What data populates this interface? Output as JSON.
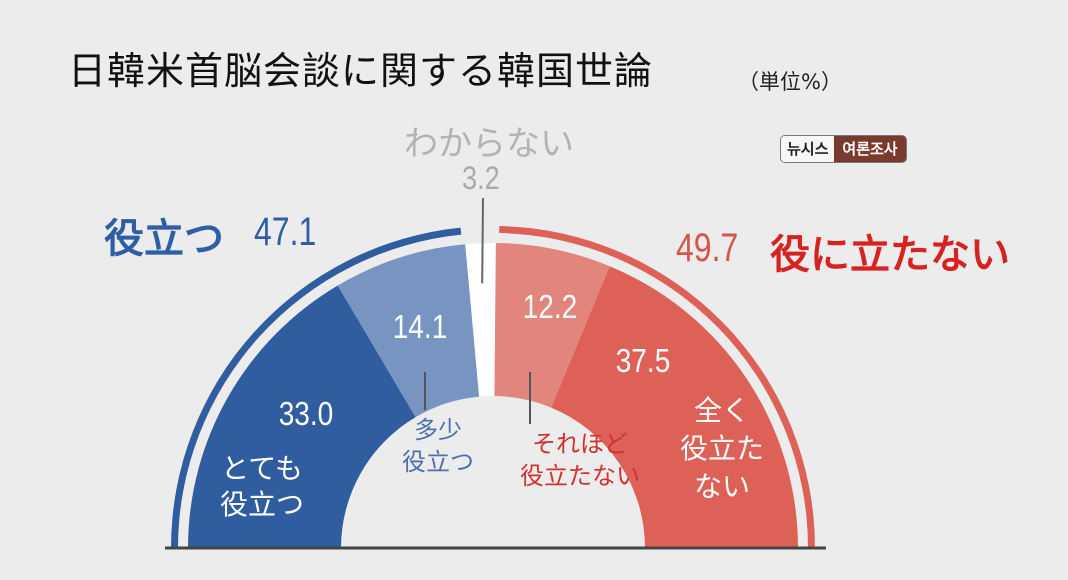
{
  "title": "日韓米首脳会談に関する韓国世論",
  "unit": "（単位%）",
  "source_badge": {
    "left": "뉴시스",
    "right": "여론조사"
  },
  "groups": {
    "positive": {
      "label": "役立つ",
      "value": "47.1"
    },
    "negative": {
      "label": "役に立たない",
      "value": "49.7"
    },
    "unknown": {
      "label": "わからない",
      "value": "3.2"
    }
  },
  "colors": {
    "very_useful": "#2f5d9f",
    "somewhat_useful": "#7895c2",
    "unknown": "#ffffff",
    "not_very_useful": "#e1857d",
    "not_at_all_useful": "#dd6157",
    "positive_text": "#2e5ea6",
    "negative_text": "#d6231f"
  },
  "chart_data": {
    "type": "pie",
    "shape": "half-donut",
    "title": "日韓米首脳会談に関する韓国世論",
    "unit": "（単位%）",
    "slices": [
      {
        "label": "とても役立つ",
        "value": 33.0,
        "color": "#2f5d9f"
      },
      {
        "label": "多少役立つ",
        "value": 14.1,
        "color": "#7895c2"
      },
      {
        "label": "",
        "value": 3.2,
        "color": "#ffffff"
      },
      {
        "label": "それほど役立たない",
        "value": 12.2,
        "color": "#e1857d"
      },
      {
        "label": "全く役立たない",
        "value": 37.5,
        "color": "#dd6157"
      }
    ],
    "slice_labels": [
      [
        "とても",
        "役立つ"
      ],
      [
        "多少",
        "役立つ"
      ],
      [],
      [
        "それほど",
        "役立たない"
      ],
      [
        "全く",
        "役立た",
        "ない"
      ]
    ],
    "value_labels": [
      "33.0",
      "14.1",
      "",
      "12.2",
      "37.5"
    ]
  }
}
